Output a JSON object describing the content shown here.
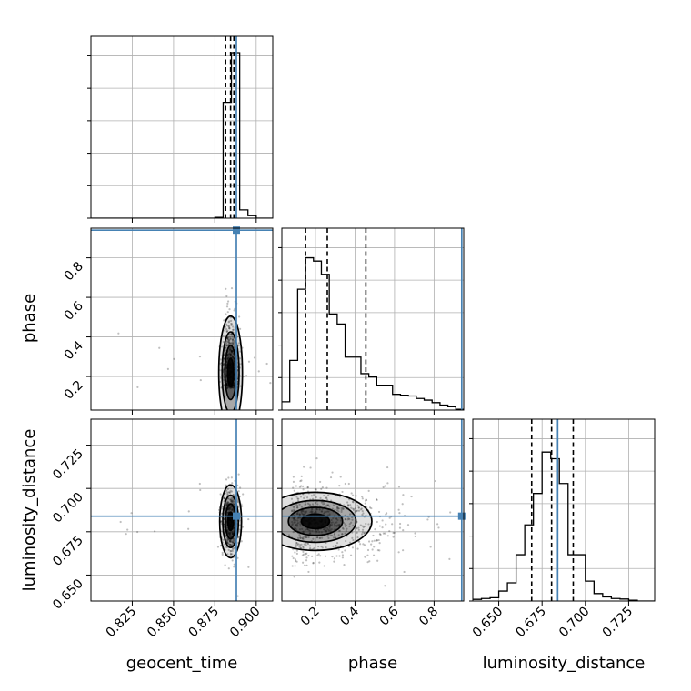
{
  "figure": {
    "type": "corner-plot",
    "colors": {
      "truth": "#4682b4",
      "line": "#000000",
      "grid": "#b0b0b0"
    }
  },
  "chart_data": {
    "type": "heatmap",
    "parameters": [
      "geocent_time",
      "phase",
      "luminosity_distance"
    ],
    "axis_labels": {
      "geocent_time": "geocent_time",
      "phase": "phase",
      "luminosity_distance": "luminosity_distance"
    },
    "ranges": {
      "geocent_time": [
        0.8,
        0.91
      ],
      "phase": [
        0.03,
        0.95
      ],
      "luminosity_distance": [
        0.635,
        0.74
      ]
    },
    "ticks": {
      "geocent_time": [
        {
          "value": 0.825,
          "label": "0.825"
        },
        {
          "value": 0.85,
          "label": "0.850"
        },
        {
          "value": 0.875,
          "label": "0.875"
        },
        {
          "value": 0.9,
          "label": "0.900"
        }
      ],
      "phase": [
        {
          "value": 0.2,
          "label": "0.2"
        },
        {
          "value": 0.4,
          "label": "0.4"
        },
        {
          "value": 0.6,
          "label": "0.6"
        },
        {
          "value": 0.8,
          "label": "0.8"
        }
      ],
      "luminosity_distance": [
        {
          "value": 0.65,
          "label": "0.650"
        },
        {
          "value": 0.675,
          "label": "0.675"
        },
        {
          "value": 0.7,
          "label": "0.700"
        },
        {
          "value": 0.725,
          "label": "0.725"
        }
      ]
    },
    "truths": {
      "geocent_time": 0.888,
      "phase": 0.94,
      "luminosity_distance": 0.684
    },
    "quantiles": {
      "geocent_time": [
        0.8815,
        0.8845,
        0.8865
      ],
      "phase": [
        0.15,
        0.26,
        0.455
      ],
      "luminosity_distance": [
        0.669,
        0.6805,
        0.693
      ]
    },
    "histograms": {
      "geocent_time": {
        "edges": [
          0.8,
          0.805,
          0.81,
          0.815,
          0.82,
          0.825,
          0.83,
          0.835,
          0.84,
          0.845,
          0.85,
          0.855,
          0.86,
          0.865,
          0.87,
          0.875,
          0.88,
          0.885,
          0.89,
          0.895,
          0.9,
          0.905,
          0.91
        ],
        "counts": [
          0,
          0,
          0,
          0,
          0,
          0,
          0,
          0,
          0,
          0,
          0,
          0,
          0,
          0,
          0,
          0.005,
          0.7,
          1.0,
          0.05,
          0.015,
          0,
          0
        ]
      },
      "phase": {
        "edges": [
          0.03,
          0.07,
          0.11,
          0.15,
          0.19,
          0.23,
          0.27,
          0.31,
          0.35,
          0.39,
          0.43,
          0.47,
          0.51,
          0.55,
          0.59,
          0.63,
          0.67,
          0.71,
          0.75,
          0.79,
          0.83,
          0.87,
          0.91,
          0.95
        ],
        "counts": [
          0.05,
          0.3,
          0.73,
          0.92,
          0.9,
          0.82,
          0.58,
          0.52,
          0.32,
          0.32,
          0.22,
          0.2,
          0.15,
          0.15,
          0.095,
          0.09,
          0.085,
          0.07,
          0.06,
          0.045,
          0.03,
          0.02,
          0.005
        ]
      },
      "luminosity_distance": {
        "edges": [
          0.635,
          0.64,
          0.645,
          0.65,
          0.655,
          0.66,
          0.665,
          0.67,
          0.675,
          0.68,
          0.685,
          0.69,
          0.695,
          0.7,
          0.705,
          0.71,
          0.715,
          0.72,
          0.725,
          0.73,
          0.735,
          0.74
        ],
        "counts": [
          0.01,
          0.015,
          0.02,
          0.06,
          0.11,
          0.28,
          0.46,
          0.65,
          0.9,
          0.86,
          0.71,
          0.28,
          0.28,
          0.12,
          0.045,
          0.025,
          0.015,
          0.012,
          0.005,
          0,
          0
        ]
      }
    },
    "density_2d": {
      "geocent_time-phase": {
        "center": [
          0.8845,
          0.22
        ],
        "spread": [
          0.0025,
          0.11
        ]
      },
      "geocent_time-luminosity_distance": {
        "center": [
          0.8845,
          0.681
        ],
        "spread": [
          0.0025,
          0.009
        ]
      },
      "phase-luminosity_distance": {
        "center": [
          0.2,
          0.681
        ],
        "spread": [
          0.14,
          0.011
        ]
      }
    },
    "grid": true
  }
}
